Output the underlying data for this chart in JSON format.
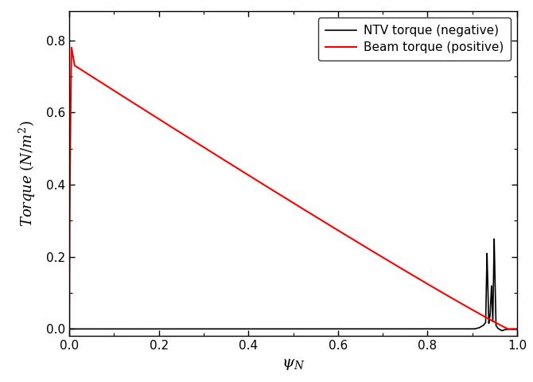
{
  "title": "",
  "xlabel": "$\\psi_N$",
  "ylabel": "Torque $(N/m^2)$",
  "xlim": [
    0.0,
    1.0
  ],
  "ylim": [
    -0.02,
    0.88
  ],
  "yticks": [
    0.0,
    0.2,
    0.4,
    0.6,
    0.8
  ],
  "xticks": [
    0.0,
    0.2,
    0.4,
    0.6,
    0.8,
    1.0
  ],
  "legend_ntv": "NTV torque (negative)",
  "legend_beam": "Beam torque (positive)",
  "ntv_color": "#000000",
  "beam_color": "#ff0000",
  "background_color": "#ffffff",
  "figsize": [
    6.7,
    4.8
  ],
  "dpi": 100
}
